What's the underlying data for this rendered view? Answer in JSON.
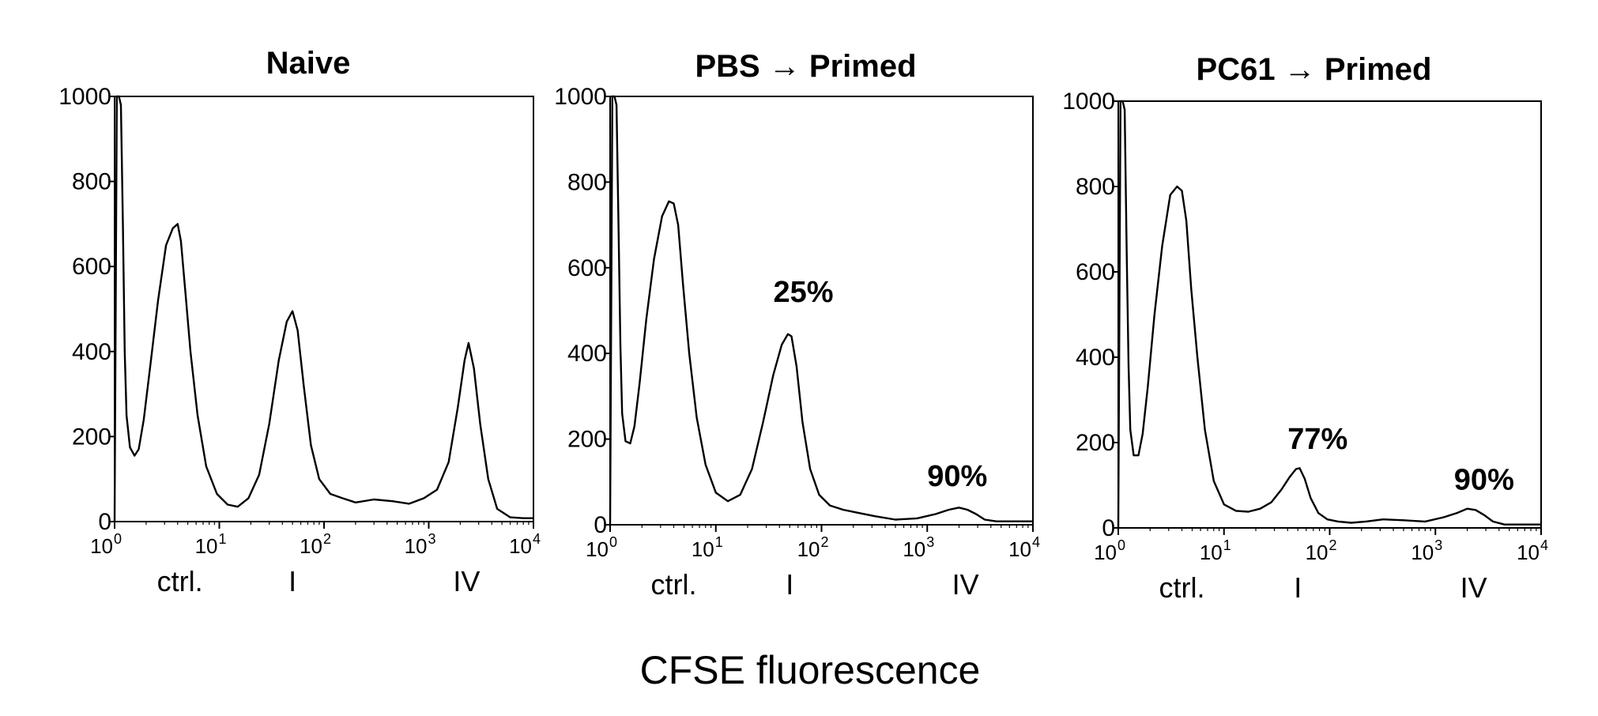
{
  "figure": {
    "xlabel": "CFSE fluorescence"
  },
  "chart_data": [
    {
      "type": "line",
      "title": "Naive",
      "x_scale": "log",
      "xlim": [
        1,
        10000
      ],
      "ylim": [
        0,
        1000
      ],
      "x_ticks": [
        {
          "base": "10",
          "exp": "0"
        },
        {
          "base": "10",
          "exp": "1"
        },
        {
          "base": "10",
          "exp": "2"
        },
        {
          "base": "10",
          "exp": "3"
        },
        {
          "base": "10",
          "exp": "4"
        }
      ],
      "y_ticks": [
        "0",
        "200",
        "400",
        "600",
        "800",
        "1000"
      ],
      "categories": [
        {
          "label": "ctrl.",
          "x": 4.2
        },
        {
          "label": "I",
          "x": 50
        },
        {
          "label": "IV",
          "x": 2300
        }
      ],
      "annotations": [],
      "x": [
        1.0,
        1.05,
        1.1,
        1.15,
        1.2,
        1.25,
        1.3,
        1.4,
        1.55,
        1.7,
        1.9,
        2.2,
        2.6,
        3.1,
        3.6,
        4.0,
        4.3,
        4.7,
        5.3,
        6.2,
        7.5,
        9.5,
        12,
        15,
        19,
        24,
        30,
        37,
        44,
        50,
        56,
        64,
        75,
        90,
        115,
        150,
        200,
        300,
        450,
        650,
        900,
        1200,
        1550,
        1900,
        2200,
        2400,
        2700,
        3100,
        3700,
        4500,
        6000,
        8000,
        10000
      ],
      "y": [
        0,
        1000,
        1000,
        980,
        700,
        400,
        250,
        175,
        155,
        170,
        240,
        370,
        520,
        650,
        690,
        700,
        660,
        550,
        400,
        250,
        130,
        65,
        40,
        35,
        55,
        110,
        230,
        380,
        470,
        495,
        450,
        320,
        180,
        100,
        65,
        55,
        45,
        52,
        48,
        42,
        55,
        75,
        140,
        270,
        380,
        420,
        360,
        230,
        100,
        30,
        10,
        8,
        8
      ]
    },
    {
      "type": "line",
      "title": "PBS → Primed",
      "x_scale": "log",
      "xlim": [
        1,
        10000
      ],
      "ylim": [
        0,
        1000
      ],
      "x_ticks": [
        {
          "base": "10",
          "exp": "0"
        },
        {
          "base": "10",
          "exp": "1"
        },
        {
          "base": "10",
          "exp": "2"
        },
        {
          "base": "10",
          "exp": "3"
        },
        {
          "base": "10",
          "exp": "4"
        }
      ],
      "y_ticks": [
        "0",
        "200",
        "400",
        "600",
        "800",
        "1000"
      ],
      "categories": [
        {
          "label": "ctrl.",
          "x": 4.0
        },
        {
          "label": "I",
          "x": 50
        },
        {
          "label": "IV",
          "x": 2300
        }
      ],
      "annotations": [
        {
          "label": "25%",
          "x": 35,
          "y": 520
        },
        {
          "label": "90%",
          "x": 1000,
          "y": 90
        }
      ],
      "x": [
        1.0,
        1.05,
        1.1,
        1.15,
        1.2,
        1.25,
        1.3,
        1.4,
        1.55,
        1.7,
        1.9,
        2.2,
        2.6,
        3.1,
        3.6,
        4.0,
        4.4,
        4.9,
        5.6,
        6.6,
        8,
        10,
        13,
        17,
        22,
        28,
        35,
        42,
        48,
        52,
        58,
        66,
        78,
        95,
        120,
        160,
        220,
        320,
        500,
        800,
        1200,
        1600,
        2000,
        2400,
        2900,
        3500,
        4500,
        6000,
        8000,
        10000
      ],
      "y": [
        0,
        1000,
        1000,
        980,
        700,
        420,
        260,
        195,
        190,
        230,
        330,
        480,
        620,
        720,
        755,
        750,
        700,
        560,
        400,
        250,
        140,
        75,
        55,
        70,
        130,
        240,
        350,
        420,
        445,
        440,
        370,
        240,
        130,
        70,
        45,
        35,
        28,
        20,
        12,
        15,
        25,
        35,
        40,
        35,
        25,
        12,
        8,
        8,
        8,
        8
      ]
    },
    {
      "type": "line",
      "title": "PC61 → Primed",
      "x_scale": "log",
      "xlim": [
        1,
        10000
      ],
      "ylim": [
        0,
        1000
      ],
      "x_ticks": [
        {
          "base": "10",
          "exp": "0"
        },
        {
          "base": "10",
          "exp": "1"
        },
        {
          "base": "10",
          "exp": "2"
        },
        {
          "base": "10",
          "exp": "3"
        },
        {
          "base": "10",
          "exp": "4"
        }
      ],
      "y_ticks": [
        "0",
        "200",
        "400",
        "600",
        "800",
        "1000"
      ],
      "categories": [
        {
          "label": "ctrl.",
          "x": 4.0
        },
        {
          "label": "I",
          "x": 50
        },
        {
          "label": "IV",
          "x": 2300
        }
      ],
      "annotations": [
        {
          "label": "77%",
          "x": 40,
          "y": 185
        },
        {
          "label": "90%",
          "x": 1500,
          "y": 90
        }
      ],
      "x": [
        1.0,
        1.05,
        1.1,
        1.15,
        1.2,
        1.25,
        1.3,
        1.4,
        1.55,
        1.7,
        1.9,
        2.2,
        2.6,
        3.1,
        3.6,
        4.0,
        4.4,
        4.9,
        5.6,
        6.6,
        8,
        10,
        13,
        17,
        22,
        28,
        35,
        42,
        48,
        52,
        58,
        66,
        78,
        95,
        120,
        160,
        220,
        320,
        500,
        800,
        1200,
        1600,
        2000,
        2400,
        2900,
        3500,
        4500,
        6000,
        8000,
        10000
      ],
      "y": [
        0,
        1000,
        1000,
        980,
        650,
        380,
        230,
        170,
        170,
        220,
        330,
        500,
        660,
        780,
        800,
        790,
        720,
        560,
        400,
        230,
        110,
        55,
        40,
        38,
        45,
        60,
        90,
        120,
        138,
        140,
        115,
        70,
        35,
        20,
        15,
        12,
        15,
        20,
        18,
        15,
        25,
        35,
        45,
        42,
        30,
        15,
        8,
        8,
        8,
        8
      ]
    }
  ]
}
